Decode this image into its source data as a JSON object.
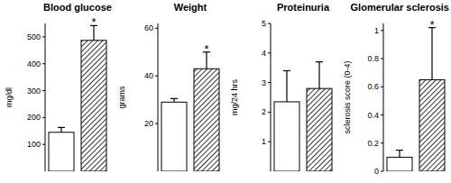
{
  "chart_data": [
    {
      "type": "bar",
      "title": "Blood glucose",
      "y_label": "mg/dl",
      "categories": [
        null,
        null
      ],
      "values": [
        145,
        487
      ],
      "errors": [
        18,
        55
      ],
      "annotations": [
        null,
        "*"
      ],
      "colors": [
        "#ffffff",
        "#000000"
      ],
      "ylim": [
        0,
        550
      ],
      "yticks": [
        100,
        200,
        300,
        400,
        500
      ],
      "grid": false
    },
    {
      "type": "bar",
      "title": "Weight",
      "y_label": "grams",
      "categories": [
        null,
        null
      ],
      "values": [
        29,
        43
      ],
      "errors": [
        1.5,
        7
      ],
      "annotations": [
        null,
        "*"
      ],
      "colors": [
        "#ffffff",
        "#000000"
      ],
      "ylim": [
        0,
        62
      ],
      "yticks": [
        20,
        40,
        60
      ],
      "grid": false
    },
    {
      "type": "bar",
      "title": "Proteinuria",
      "y_label": "mg/24 hrs",
      "categories": [
        null,
        null
      ],
      "values": [
        2.35,
        2.8
      ],
      "errors": [
        1.05,
        0.9
      ],
      "annotations": [
        null,
        null
      ],
      "colors": [
        "#ffffff",
        "#000000"
      ],
      "ylim": [
        0,
        5
      ],
      "yticks": [
        1,
        2,
        3,
        4,
        5
      ],
      "grid": false
    },
    {
      "type": "bar",
      "title": "Glomerular sclerosis",
      "y_label": "sclerosis score (0-4)",
      "categories": [
        null,
        null
      ],
      "values": [
        0.1,
        0.65
      ],
      "errors": [
        0.05,
        0.37
      ],
      "annotations": [
        null,
        "*"
      ],
      "colors": [
        "#ffffff",
        "#000000"
      ],
      "ylim": [
        0,
        1.05
      ],
      "yticks": [
        0,
        0.2,
        0.4,
        0.6,
        0.8,
        1
      ],
      "grid": false
    }
  ]
}
